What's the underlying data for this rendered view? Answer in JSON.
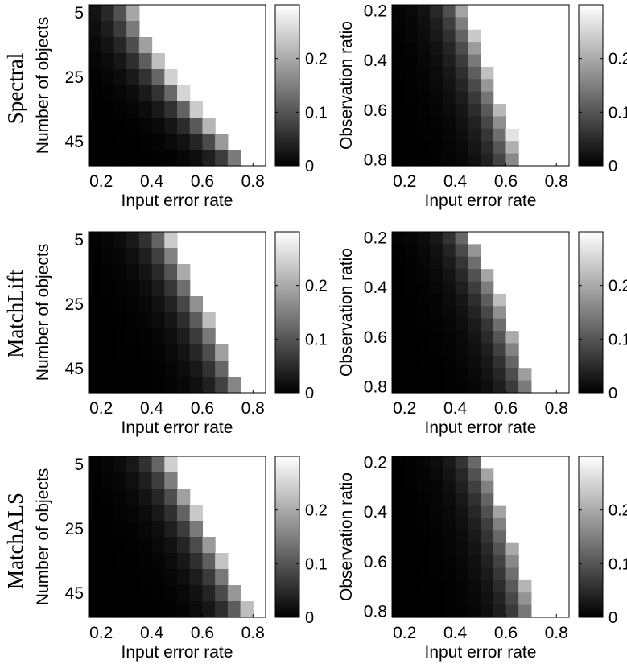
{
  "figure": {
    "row_labels": [
      "Spectral",
      "MatchLift",
      "MatchALS"
    ],
    "colorbar": {
      "ticks": [
        0,
        0.1,
        0.2
      ],
      "tick_labels": [
        "0",
        "0.1",
        "0.2"
      ],
      "range": [
        0,
        0.3
      ]
    }
  },
  "chart_data": [
    {
      "type": "heatmap",
      "row": 0,
      "col": 0,
      "method": "Spectral",
      "xlabel": "Input error rate",
      "ylabel": "Number of objects",
      "x_range": [
        0.15,
        0.85
      ],
      "x_ticks": [
        0.2,
        0.4,
        0.6,
        0.8
      ],
      "x_tick_labels": [
        "0.2",
        "0.4",
        "0.6",
        "0.8"
      ],
      "y_range": [
        2.5,
        52.5
      ],
      "y_ticks": [
        5,
        25,
        45
      ],
      "y_tick_labels": [
        "5",
        "25",
        "45"
      ],
      "x_step": 0.05,
      "y_step": 5,
      "profile": {
        "boundary_start": 0.34,
        "boundary_end": 0.8,
        "steepness": 1.5,
        "edge_value": 0.26
      }
    },
    {
      "type": "heatmap",
      "row": 0,
      "col": 1,
      "method": "Spectral",
      "xlabel": "Input error rate",
      "ylabel": "Observation ratio",
      "x_range": [
        0.15,
        0.85
      ],
      "x_ticks": [
        0.2,
        0.4,
        0.6,
        0.8
      ],
      "x_tick_labels": [
        "0.2",
        "0.4",
        "0.6",
        "0.8"
      ],
      "y_range": [
        0.175,
        0.825
      ],
      "y_ticks": [
        0.2,
        0.4,
        0.6,
        0.8
      ],
      "y_tick_labels": [
        "0.2",
        "0.4",
        "0.6",
        "0.8"
      ],
      "x_step": 0.05,
      "y_step": 0.05,
      "profile": {
        "boundary_start": 0.44,
        "boundary_end": 0.67,
        "steepness": 1.0,
        "edge_value": 0.27
      }
    },
    {
      "type": "heatmap",
      "row": 1,
      "col": 0,
      "method": "MatchLift",
      "xlabel": "Input error rate",
      "ylabel": "Number of objects",
      "x_range": [
        0.15,
        0.85
      ],
      "x_ticks": [
        0.2,
        0.4,
        0.6,
        0.8
      ],
      "x_tick_labels": [
        "0.2",
        "0.4",
        "0.6",
        "0.8"
      ],
      "y_range": [
        2.5,
        52.5
      ],
      "y_ticks": [
        5,
        25,
        45
      ],
      "y_tick_labels": [
        "5",
        "25",
        "45"
      ],
      "x_step": 0.05,
      "y_step": 5,
      "profile": {
        "boundary_start": 0.46,
        "boundary_end": 0.77,
        "steepness": 1.0,
        "edge_value": 0.24
      }
    },
    {
      "type": "heatmap",
      "row": 1,
      "col": 1,
      "method": "MatchLift",
      "xlabel": "Input error rate",
      "ylabel": "Observation ratio",
      "x_range": [
        0.15,
        0.85
      ],
      "x_ticks": [
        0.2,
        0.4,
        0.6,
        0.8
      ],
      "x_tick_labels": [
        "0.2",
        "0.4",
        "0.6",
        "0.8"
      ],
      "y_range": [
        0.175,
        0.825
      ],
      "y_ticks": [
        0.2,
        0.4,
        0.6,
        0.8
      ],
      "y_tick_labels": [
        "0.2",
        "0.4",
        "0.6",
        "0.8"
      ],
      "x_step": 0.05,
      "y_step": 0.05,
      "profile": {
        "boundary_start": 0.46,
        "boundary_end": 0.72,
        "steepness": 0.9,
        "edge_value": 0.24
      }
    },
    {
      "type": "heatmap",
      "row": 2,
      "col": 0,
      "method": "MatchALS",
      "xlabel": "Input error rate",
      "ylabel": "Number of objects",
      "x_range": [
        0.15,
        0.85
      ],
      "x_ticks": [
        0.2,
        0.4,
        0.6,
        0.8
      ],
      "x_tick_labels": [
        "0.2",
        "0.4",
        "0.6",
        "0.8"
      ],
      "y_range": [
        2.5,
        52.5
      ],
      "y_ticks": [
        5,
        25,
        45
      ],
      "y_tick_labels": [
        "5",
        "25",
        "45"
      ],
      "x_step": 0.05,
      "y_step": 5,
      "profile": {
        "boundary_start": 0.46,
        "boundary_end": 0.8,
        "steepness": 1.0,
        "edge_value": 0.25
      }
    },
    {
      "type": "heatmap",
      "row": 2,
      "col": 1,
      "method": "MatchALS",
      "xlabel": "Input error rate",
      "ylabel": "Observation ratio",
      "x_range": [
        0.15,
        0.85
      ],
      "x_ticks": [
        0.2,
        0.4,
        0.6,
        0.8
      ],
      "x_tick_labels": [
        "0.2",
        "0.4",
        "0.6",
        "0.8"
      ],
      "y_range": [
        0.175,
        0.825
      ],
      "y_ticks": [
        0.2,
        0.4,
        0.6,
        0.8
      ],
      "y_tick_labels": [
        "0.2",
        "0.4",
        "0.6",
        "0.8"
      ],
      "x_step": 0.05,
      "y_step": 0.05,
      "profile": {
        "boundary_start": 0.51,
        "boundary_end": 0.72,
        "steepness": 0.9,
        "edge_value": 0.24
      }
    }
  ]
}
